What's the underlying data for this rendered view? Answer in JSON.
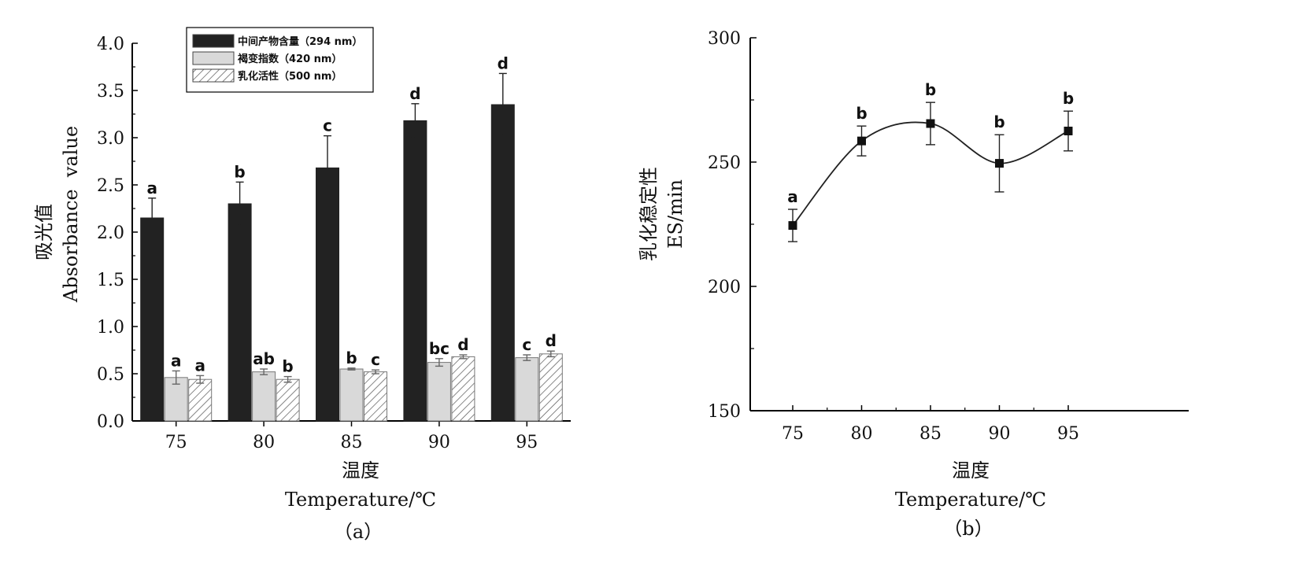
{
  "colors": {
    "series_dark": "#222222",
    "series_light": "#d9d9d9",
    "series_hatched": "#ffffff",
    "axis": "#000000"
  },
  "chart_data": [
    {
      "type": "bar",
      "panel_label": "（a）",
      "categories": [
        "75",
        "80",
        "85",
        "90",
        "95"
      ],
      "xlabel_cn": "温度",
      "xlabel_en": "Temperature/℃",
      "ylabel_cn": "吸光值",
      "ylabel_en": "Absorbance  value",
      "ylim": [
        0,
        4.0
      ],
      "yticks": [
        "0.0",
        "0.5",
        "1.0",
        "1.5",
        "2.0",
        "2.5",
        "3.0",
        "3.5",
        "4.0"
      ],
      "legend_position": "top-center",
      "series": [
        {
          "name": "中间产物含量（294 nm）",
          "pattern": "solid-dark",
          "values": [
            2.15,
            2.3,
            2.68,
            3.18,
            3.35
          ],
          "errors": [
            0.21,
            0.23,
            0.34,
            0.18,
            0.33
          ],
          "letters": [
            "a",
            "b",
            "c",
            "d",
            "d"
          ]
        },
        {
          "name": "褐变指数（420 nm）",
          "pattern": "solid-light",
          "values": [
            0.46,
            0.52,
            0.55,
            0.62,
            0.67
          ],
          "errors": [
            0.07,
            0.03,
            0.01,
            0.04,
            0.03
          ],
          "letters": [
            "a",
            "ab",
            "b",
            "bc",
            "c"
          ]
        },
        {
          "name": "乳化活性（500 nm）",
          "pattern": "hatched",
          "values": [
            0.44,
            0.44,
            0.52,
            0.68,
            0.71
          ],
          "errors": [
            0.04,
            0.03,
            0.02,
            0.02,
            0.03
          ],
          "letters": [
            "a",
            "b",
            "c",
            "d",
            "d"
          ]
        }
      ]
    },
    {
      "type": "line",
      "panel_label": "（b）",
      "x": [
        "75",
        "80",
        "85",
        "90",
        "95"
      ],
      "xlabel_cn": "温度",
      "xlabel_en": "Temperature/℃",
      "ylabel_cn": "乳化稳定性",
      "ylabel_en": "ES/min",
      "ylim": [
        150,
        300
      ],
      "yticks": [
        "150",
        "200",
        "250",
        "300"
      ],
      "smooth": true,
      "marker": "square",
      "values": [
        224.5,
        258.5,
        265.5,
        249.5,
        262.5
      ],
      "errors": [
        6.5,
        6,
        8.5,
        11.5,
        8
      ],
      "letters": [
        "a",
        "b",
        "b",
        "b",
        "b"
      ]
    }
  ]
}
